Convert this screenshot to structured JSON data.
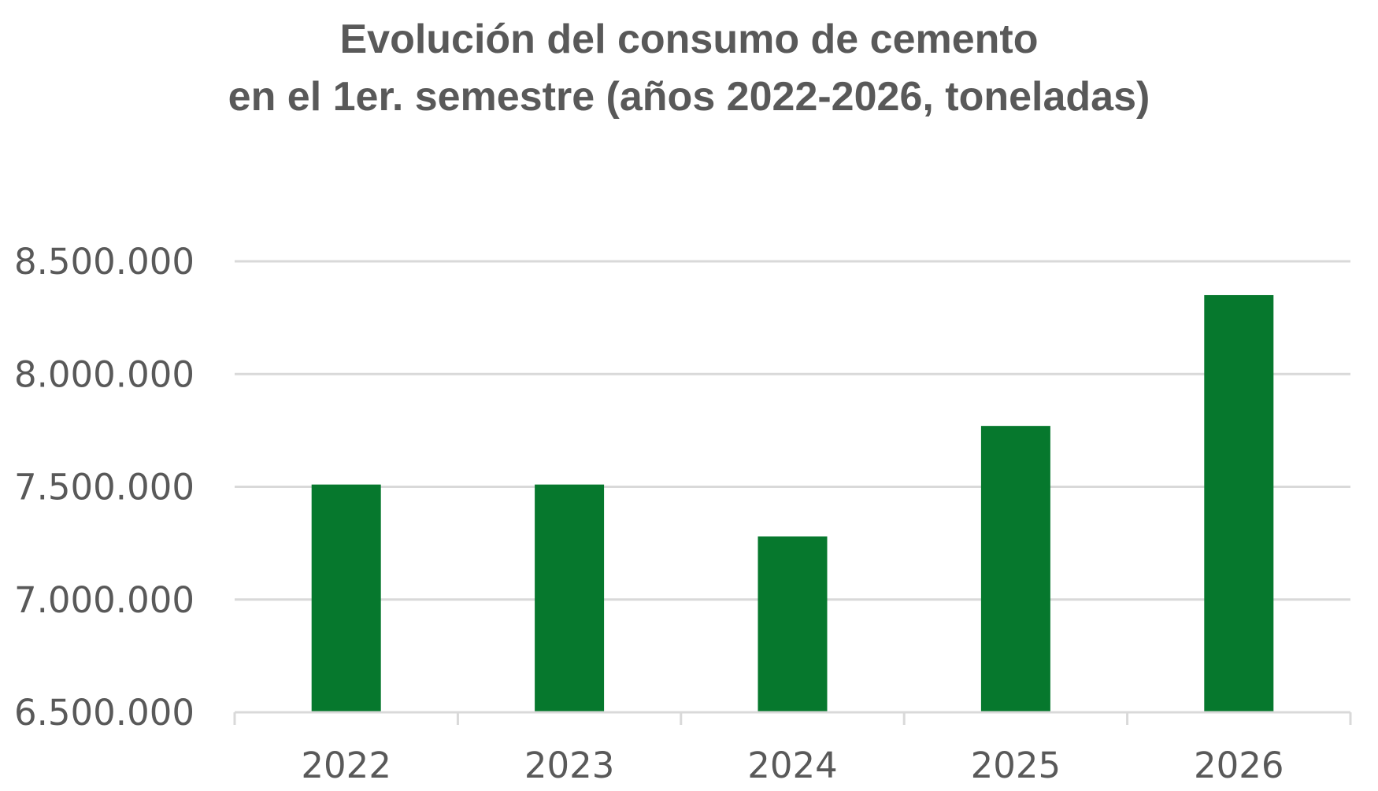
{
  "chart_data": {
    "type": "bar",
    "title_lines": [
      "Evolución del consumo de cemento",
      "en el 1er. semestre (años 2022-2026, toneladas)"
    ],
    "categories": [
      "2022",
      "2023",
      "2024",
      "2025",
      "2026"
    ],
    "values": [
      7510000,
      7510000,
      7280000,
      7770000,
      8350000
    ],
    "ylim": [
      6500000,
      8500000
    ],
    "yticks": [
      6500000,
      7000000,
      7500000,
      8000000,
      8500000
    ],
    "ytick_labels": [
      "6.500.000",
      "7.000.000",
      "7.500.000",
      "8.000.000",
      "8.500.000"
    ],
    "xlabel": "",
    "ylabel": "",
    "grid": true,
    "legend": "none",
    "bar_color": "#06782D",
    "grid_color": "#D9D9D9",
    "text_color": "#595959"
  }
}
